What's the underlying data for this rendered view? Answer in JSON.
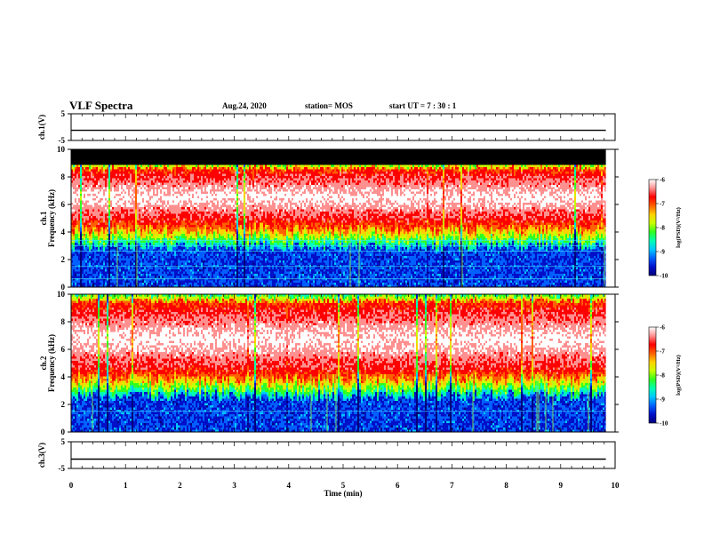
{
  "header": {
    "title": "VLF Spectra",
    "date": "Aug.24, 2020",
    "station": "station= MOS",
    "start": "start  UT =   7 : 30 : 1"
  },
  "chart_data": [
    {
      "type": "line",
      "panel": "ch1-voltage",
      "ylabel": "ch.1(V)",
      "ylim": [
        -5,
        5
      ],
      "y_ticks": [
        "5",
        "-5"
      ],
      "series": [
        {
          "x": [
            0,
            9.83
          ],
          "values": [
            -1.2,
            -1.2
          ]
        }
      ],
      "color": "#000000"
    },
    {
      "type": "heatmap",
      "panel": "ch1-spectrogram",
      "ylabel": "Frequency (kHz)",
      "panel_label": "ch.1",
      "xlim": [
        0,
        9.83
      ],
      "ylim": [
        0,
        10
      ],
      "y_ticks": [
        "0",
        "2",
        "4",
        "6",
        "8",
        "10"
      ],
      "band_kHz": {
        "low_edge": 4.5,
        "high_edge": 8.7,
        "peak": 6.6
      },
      "saturated_above_kHz": 8.7,
      "horizontal_lines_kHz": [
        0.6,
        1.5,
        2.6,
        3.0,
        3.4
      ],
      "colorbar": {
        "label": "log(PSD)(V²/Hz)",
        "ticks": [
          "-6",
          "-7",
          "-8",
          "-9",
          "-10"
        ],
        "range": [
          -10,
          -6
        ]
      }
    },
    {
      "type": "heatmap",
      "panel": "ch2-spectrogram",
      "ylabel": "Frequency (kHz)",
      "panel_label": "ch.2",
      "xlim": [
        0,
        9.83
      ],
      "ylim": [
        0,
        10
      ],
      "y_ticks": [
        "0",
        "2",
        "4",
        "6",
        "8",
        "10"
      ],
      "band_kHz": {
        "low_edge": 4.2,
        "high_edge": 9.6,
        "peak": 6.8
      },
      "horizontal_lines_kHz": [
        1.5
      ],
      "colorbar": {
        "label": "log(PSD)(V²/Hz)",
        "ticks": [
          "-6",
          "-7",
          "-8",
          "-9",
          "-10"
        ],
        "range": [
          -10,
          -6
        ]
      }
    },
    {
      "type": "line",
      "panel": "ch3-voltage",
      "ylabel": "ch.3(V)",
      "ylim": [
        -5,
        5
      ],
      "y_ticks": [
        "5",
        "-5"
      ],
      "series": [
        {
          "x": [
            0,
            9.83
          ],
          "values": [
            -1.5,
            -1.5
          ]
        }
      ],
      "color": "#000000"
    }
  ],
  "x_axis": {
    "label": "Time (min)",
    "range": [
      0,
      10
    ],
    "ticks": [
      "0",
      "1",
      "2",
      "3",
      "4",
      "5",
      "6",
      "7",
      "8",
      "9",
      "10"
    ]
  },
  "colormap": [
    "#00007a",
    "#0010c8",
    "#0060ff",
    "#00c8ff",
    "#00ffb0",
    "#30ff20",
    "#c8ff00",
    "#ffd000",
    "#ff6000",
    "#ff0000",
    "#ff9090",
    "#ffffff"
  ]
}
